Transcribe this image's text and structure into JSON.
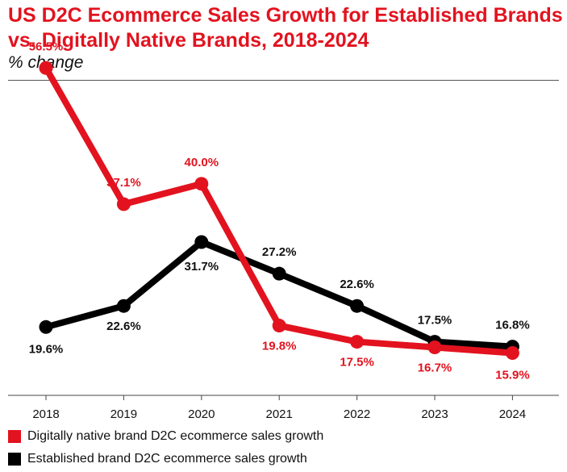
{
  "header": {
    "title": "US D2C Ecommerce Sales Growth for Established Brands vs. Digitally Native Brands, 2018-2024",
    "subtitle": "% change"
  },
  "chart_data": {
    "type": "line",
    "x": [
      "2018",
      "2019",
      "2020",
      "2021",
      "2022",
      "2023",
      "2024"
    ],
    "ylim": [
      10,
      60
    ],
    "grid": false,
    "legend_position": "bottom",
    "series": [
      {
        "name": "Digitally native brand D2C ecommerce sales growth",
        "color": "#e2131f",
        "values": [
          56.5,
          37.1,
          40.0,
          19.8,
          17.5,
          16.7,
          15.9
        ],
        "labels": [
          "56.5%",
          "37.1%",
          "40.0%",
          "19.8%",
          "17.5%",
          "16.7%",
          "15.9%"
        ]
      },
      {
        "name": "Established brand D2C ecommerce sales growth",
        "color": "#000000",
        "values": [
          19.6,
          22.6,
          31.7,
          27.2,
          22.6,
          17.5,
          16.8
        ],
        "labels": [
          "19.6%",
          "22.6%",
          "31.7%",
          "27.2%",
          "22.6%",
          "17.5%",
          "16.8%"
        ]
      }
    ]
  }
}
